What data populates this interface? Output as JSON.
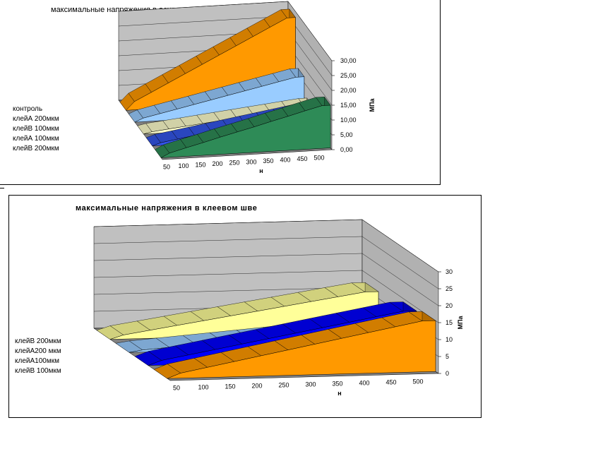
{
  "charts": [
    {
      "title": "максимальные напряжения в основании",
      "legend": [
        "контроль",
        "клейА 200мкм",
        "клейВ 100мкм",
        "клейА 100мкм",
        "клейВ 200мкм"
      ],
      "series_colors": [
        "#2E8B57",
        "#3355E8",
        "#FFFFCC",
        "#99CCFF",
        "#FF9900"
      ],
      "wall_color": "#C0C0C0",
      "floor_color": "#808080"
    },
    {
      "title": "максимальные напряжения в клеевом шве",
      "legend": [
        "клейВ 200мкм",
        "клейА200 мкм",
        "клейА100мкм",
        "клейВ 100мкм"
      ],
      "series_colors": [
        "#FF9900",
        "#0000FF",
        "#99CCFF",
        "#FFFF99"
      ],
      "wall_color": "#C0C0C0",
      "floor_color": "#808080"
    }
  ],
  "chart_data": [
    {
      "type": "area",
      "title": "максимальные напряжения в основании",
      "xlabel": "н",
      "ylabel": "МПа",
      "x": [
        50,
        100,
        150,
        200,
        250,
        300,
        350,
        400,
        450,
        500
      ],
      "y_ticks": [
        "0,00",
        "5,00",
        "10,00",
        "15,00",
        "20,00",
        "25,00",
        "30,00"
      ],
      "ylim": [
        0,
        30
      ],
      "series": [
        {
          "name": "контроль",
          "values": [
            1.4,
            2.9,
            4.3,
            5.8,
            7.2,
            8.6,
            10.1,
            11.5,
            13.0,
            14.4
          ]
        },
        {
          "name": "клейА 200мкм",
          "values": [
            0.9,
            1.8,
            2.7,
            3.6,
            4.5,
            5.4,
            6.3,
            7.2,
            8.1,
            9.0
          ]
        },
        {
          "name": "клейВ 100мкм",
          "values": [
            0.6,
            1.2,
            1.8,
            2.4,
            3.0,
            3.6,
            4.2,
            4.8,
            5.4,
            6.0
          ]
        },
        {
          "name": "клейА 100мкм",
          "values": [
            1.2,
            2.4,
            3.6,
            4.8,
            6.0,
            7.2,
            8.4,
            9.6,
            10.8,
            12.0
          ]
        },
        {
          "name": "клейВ 200мкм",
          "values": [
            2.8,
            5.6,
            8.4,
            11.2,
            14.0,
            16.8,
            19.6,
            22.4,
            25.2,
            28.0
          ]
        }
      ]
    },
    {
      "type": "area",
      "title": "максимальные напряжения в клеевом шве",
      "xlabel": "н",
      "ylabel": "МПа",
      "x": [
        50,
        100,
        150,
        200,
        250,
        300,
        350,
        400,
        450,
        500
      ],
      "y_ticks": [
        "0",
        "5",
        "10",
        "15",
        "20",
        "25",
        "30"
      ],
      "ylim": [
        0,
        30
      ],
      "series": [
        {
          "name": "клейВ 200мкм",
          "values": [
            1.5,
            3.0,
            4.5,
            6.0,
            7.5,
            9.0,
            10.5,
            12.0,
            13.5,
            15.0
          ]
        },
        {
          "name": "клейА200 мкм",
          "values": [
            1.4,
            2.8,
            4.2,
            5.6,
            7.0,
            8.4,
            9.8,
            11.2,
            12.6,
            14.0
          ]
        },
        {
          "name": "клейА100мкм",
          "values": [
            0.6,
            1.2,
            1.8,
            2.4,
            3.0,
            3.6,
            4.2,
            4.8,
            5.4,
            6.0
          ]
        },
        {
          "name": "клейВ 100мкм",
          "values": [
            1.2,
            2.4,
            3.6,
            4.8,
            6.0,
            7.2,
            8.4,
            9.6,
            10.8,
            12.0
          ]
        }
      ]
    }
  ]
}
